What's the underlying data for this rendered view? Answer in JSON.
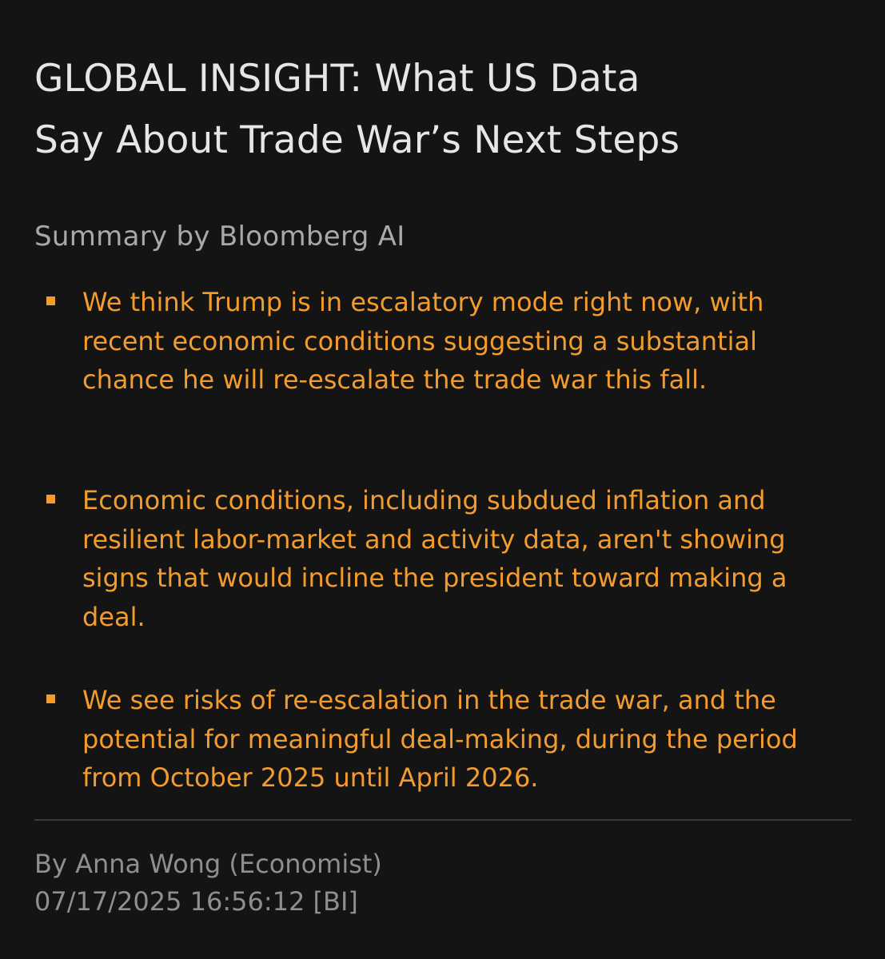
{
  "article": {
    "headline_line1": "GLOBAL INSIGHT: What US Data",
    "headline_line2": "Say About Trade War’s Next Steps",
    "summary_label": "Summary by Bloomberg AI",
    "bullets": [
      "We think Trump is in escalatory mode right now, with recent economic conditions suggesting a substantial chance he will re-escalate the trade war this fall.",
      "Economic conditions, including subdued inflation and resilient labor-market and activity data, aren't showing signs that would incline the president toward making a deal.",
      "We see risks of re-escalation in the trade war, and the potential for meaningful deal-making, during the period from October 2025 until April 2026."
    ],
    "byline": "By Anna Wong (Economist)",
    "timestamp": "07/17/2025 16:56:12 [BI]"
  },
  "colors": {
    "background": "#141414",
    "headline": "#e6e6e6",
    "accent": "#f39c2e",
    "muted": "#8f8f8f",
    "divider": "#3a3a3a"
  }
}
